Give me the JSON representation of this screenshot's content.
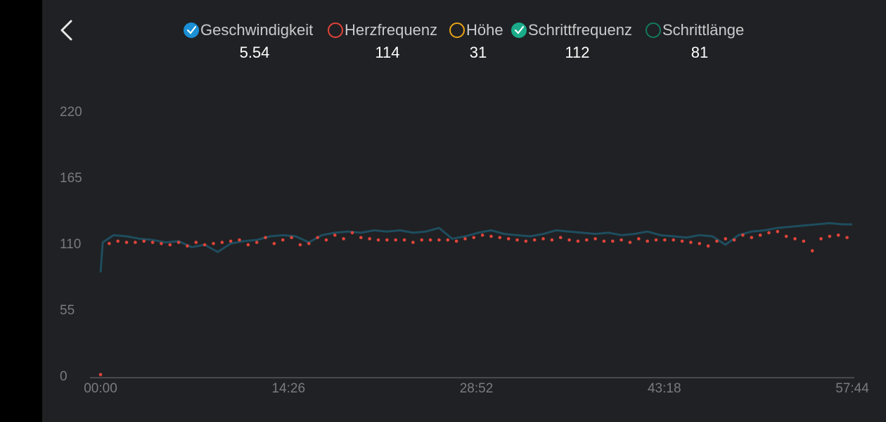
{
  "chart_data": {
    "type": "line",
    "legend_items": [
      {
        "name": "Geschwindigkeit",
        "icon_color": "#1a8fd6",
        "checked": true,
        "current": 5.54
      },
      {
        "name": "Herzfrequenz",
        "icon_color": "#e0443a",
        "checked": false,
        "current": 114
      },
      {
        "name": "Höhe",
        "icon_color": "#e8a317",
        "checked": false,
        "current": 31
      },
      {
        "name": "Schrittfrequenz",
        "icon_color": "#1aab8a",
        "checked": true,
        "current": 112
      },
      {
        "name": "Schrittlänge",
        "icon_color": "#127a5e",
        "checked": false,
        "current": 81
      }
    ],
    "series": [
      {
        "legend_index": 0,
        "style": "line",
        "color": "#1e4d5e",
        "x": [
          0,
          10,
          60,
          120,
          180,
          240,
          300,
          360,
          420,
          480,
          540,
          600,
          660,
          720,
          780,
          840,
          900,
          960,
          1020,
          1080,
          1140,
          1200,
          1260,
          1320,
          1380,
          1440,
          1500,
          1560,
          1620,
          1680,
          1740,
          1800,
          1860,
          1920,
          1980,
          2040,
          2100,
          2160,
          2220,
          2280,
          2340,
          2400,
          2460,
          2520,
          2580,
          2640,
          2700,
          2760,
          2820,
          2880,
          2940,
          3000,
          3060,
          3120,
          3180,
          3240,
          3300,
          3360,
          3420,
          3464
        ],
        "values": [
          87,
          112,
          118,
          117,
          115,
          114,
          112,
          113,
          108,
          110,
          104,
          111,
          113,
          114,
          117,
          118,
          117,
          112,
          118,
          120,
          121,
          120,
          122,
          121,
          122,
          120,
          121,
          124,
          115,
          117,
          120,
          122,
          119,
          118,
          117,
          119,
          122,
          121,
          120,
          119,
          120,
          118,
          119,
          121,
          118,
          117,
          116,
          118,
          117,
          110,
          118,
          121,
          122,
          124,
          125,
          126,
          127,
          128,
          127,
          127
        ]
      },
      {
        "legend_index": 3,
        "style": "dots",
        "color": "#e0443a",
        "x": [
          0,
          40,
          80,
          120,
          160,
          200,
          240,
          280,
          320,
          360,
          400,
          440,
          480,
          520,
          560,
          600,
          640,
          680,
          720,
          760,
          800,
          840,
          880,
          920,
          960,
          1000,
          1040,
          1080,
          1120,
          1160,
          1200,
          1240,
          1280,
          1320,
          1360,
          1400,
          1440,
          1480,
          1520,
          1560,
          1600,
          1640,
          1680,
          1720,
          1760,
          1800,
          1840,
          1880,
          1920,
          1960,
          2000,
          2040,
          2080,
          2120,
          2160,
          2200,
          2240,
          2280,
          2320,
          2360,
          2400,
          2440,
          2480,
          2520,
          2560,
          2600,
          2640,
          2680,
          2720,
          2760,
          2800,
          2840,
          2880,
          2920,
          2960,
          3000,
          3040,
          3080,
          3120,
          3160,
          3200,
          3240,
          3280,
          3320,
          3360,
          3400,
          3440
        ],
        "values": [
          2,
          111,
          113,
          112,
          112,
          113,
          112,
          111,
          110,
          112,
          109,
          112,
          110,
          111,
          112,
          113,
          114,
          110,
          112,
          116,
          111,
          114,
          116,
          110,
          111,
          116,
          114,
          118,
          115,
          120,
          116,
          115,
          114,
          114,
          114,
          114,
          112,
          114,
          114,
          114,
          114,
          113,
          115,
          116,
          118,
          117,
          116,
          115,
          114,
          113,
          114,
          115,
          114,
          116,
          114,
          113,
          114,
          115,
          113,
          113,
          114,
          112,
          115,
          113,
          114,
          114,
          114,
          113,
          112,
          111,
          109,
          113,
          115,
          114,
          118,
          116,
          118,
          120,
          121,
          117,
          115,
          113,
          105,
          115,
          117,
          118,
          116
        ]
      }
    ],
    "xlim": [
      0,
      3464
    ],
    "xticks": [
      {
        "value": 0,
        "label": "00:00"
      },
      {
        "value": 866,
        "label": "14:26"
      },
      {
        "value": 1732,
        "label": "28:52"
      },
      {
        "value": 2598,
        "label": "43:18"
      },
      {
        "value": 3464,
        "label": "57:44"
      }
    ],
    "ylim": [
      0,
      220
    ],
    "yticks": [
      0,
      55,
      110,
      165,
      220
    ],
    "grid": false
  }
}
